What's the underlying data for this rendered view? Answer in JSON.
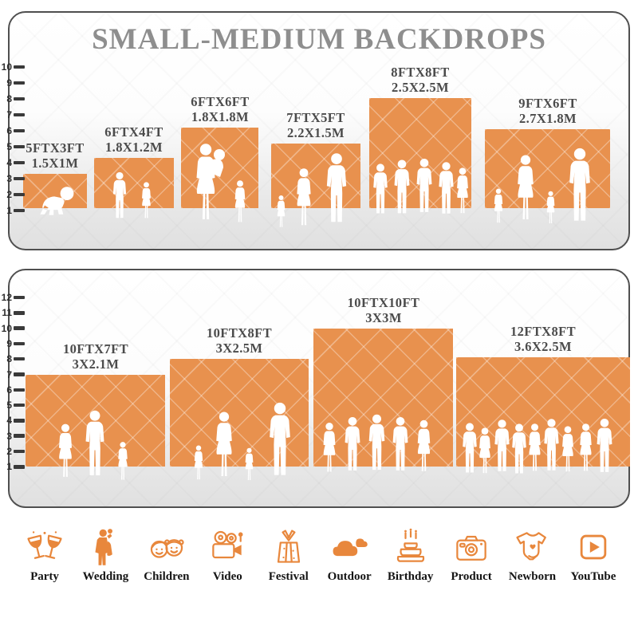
{
  "title": "SMALL-MEDIUM BACKDROPS",
  "colors": {
    "backdrop_orange": "#E8914E",
    "icon_orange": "#E8873C",
    "title_gray": "#8E8E8E",
    "label_gray": "#4B4B4B"
  },
  "panel_small_medium": {
    "scale_ticks": [
      "10",
      "9",
      "8",
      "7",
      "6",
      "5",
      "4",
      "3",
      "2",
      "1"
    ],
    "backdrops": [
      {
        "size_ft": "5FTX3FT",
        "size_m": "1.5X1M"
      },
      {
        "size_ft": "6FTX4FT",
        "size_m": "1.8X1.2M"
      },
      {
        "size_ft": "6FTX6FT",
        "size_m": "1.8X1.8M"
      },
      {
        "size_ft": "7FTX5FT",
        "size_m": "2.2X1.5M"
      },
      {
        "size_ft": "8FTX8FT",
        "size_m": "2.5X2.5M"
      },
      {
        "size_ft": "9FTX6FT",
        "size_m": "2.7X1.8M"
      }
    ]
  },
  "panel_large": {
    "scale_ticks": [
      "12",
      "11",
      "10",
      "9",
      "8",
      "7",
      "6",
      "5",
      "4",
      "3",
      "2",
      "1"
    ],
    "backdrops": [
      {
        "size_ft": "10FTX7FT",
        "size_m": "3X2.1M"
      },
      {
        "size_ft": "10FTX8FT",
        "size_m": "3X2.5M"
      },
      {
        "size_ft": "10FTX10FT",
        "size_m": "3X3M"
      },
      {
        "size_ft": "12FTX8FT",
        "size_m": "3.6X2.5M"
      }
    ]
  },
  "chart_data": {
    "type": "bar",
    "title": "SMALL-MEDIUM BACKDROPS",
    "panels": [
      {
        "scale_range": [
          1,
          10
        ],
        "items": [
          {
            "label": "5FTX3FT 1.5X1M",
            "width_ft": 5,
            "height_ft": 3
          },
          {
            "label": "6FTX4FT 1.8X1.2M",
            "width_ft": 6,
            "height_ft": 4
          },
          {
            "label": "6FTX6FT 1.8X1.8M",
            "width_ft": 6,
            "height_ft": 6
          },
          {
            "label": "7FTX5FT 2.2X1.5M",
            "width_ft": 7,
            "height_ft": 5
          },
          {
            "label": "8FTX8FT 2.5X2.5M",
            "width_ft": 8,
            "height_ft": 8
          },
          {
            "label": "9FTX6FT 2.7X1.8M",
            "width_ft": 9,
            "height_ft": 6
          }
        ]
      },
      {
        "scale_range": [
          1,
          12
        ],
        "items": [
          {
            "label": "10FTX7FT 3X2.1M",
            "width_ft": 10,
            "height_ft": 7
          },
          {
            "label": "10FTX8FT 3X2.5M",
            "width_ft": 10,
            "height_ft": 8
          },
          {
            "label": "10FTX10FT 3X3M",
            "width_ft": 10,
            "height_ft": 10
          },
          {
            "label": "12FTX8FT 3.6X2.5M",
            "width_ft": 12,
            "height_ft": 8
          }
        ]
      }
    ]
  },
  "categories": [
    {
      "label": "Party",
      "icon": "party-glasses-icon"
    },
    {
      "label": "Wedding",
      "icon": "wedding-couple-icon"
    },
    {
      "label": "Children",
      "icon": "children-faces-icon"
    },
    {
      "label": "Video",
      "icon": "video-camera-icon"
    },
    {
      "label": "Festival",
      "icon": "gift-box-icon"
    },
    {
      "label": "Outdoor",
      "icon": "clouds-icon"
    },
    {
      "label": "Birthday",
      "icon": "birthday-cake-icon"
    },
    {
      "label": "Product",
      "icon": "photo-camera-icon"
    },
    {
      "label": "Newborn",
      "icon": "baby-onesie-icon"
    },
    {
      "label": "YouTube",
      "icon": "play-button-icon"
    }
  ]
}
